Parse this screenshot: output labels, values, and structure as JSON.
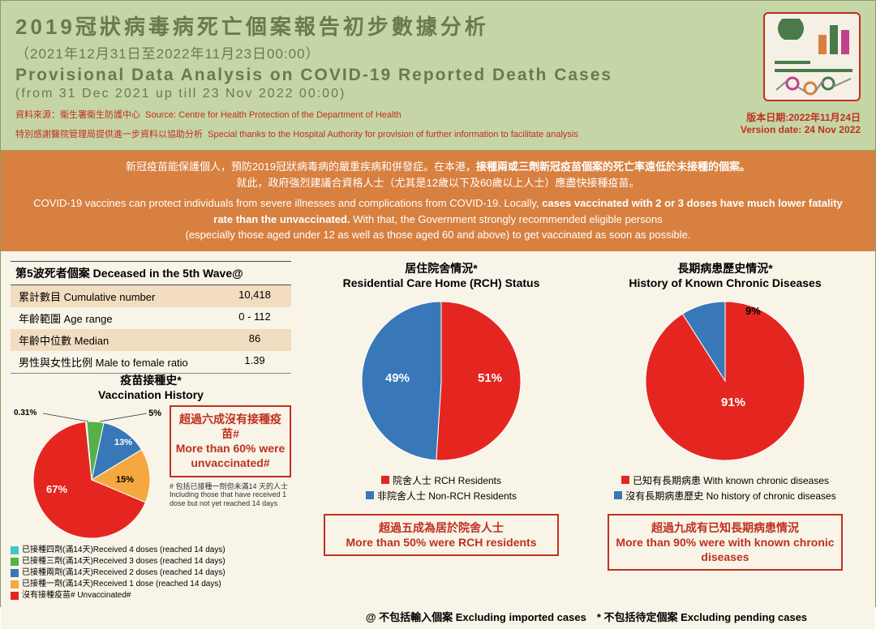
{
  "header": {
    "title_cn": "2019冠狀病毒病死亡個案報告初步數據分析",
    "subtitle_cn": "（2021年12月31日至2022年11月23日00:00）",
    "title_en": "Provisional Data Analysis on COVID-19 Reported Death Cases",
    "subtitle_en": "(from 31 Dec 2021 up till 23 Nov 2022 00:00)",
    "source_cn": "資料來源：衞生署衞生防護中心",
    "source_en": "Source: Centre for Health Protection of the Department of Health",
    "thanks_cn": "特別感謝醫院管理局提供進一步資料以協助分析",
    "thanks_en": "Special thanks to the Hospital Authority for provision of further information to facilitate analysis",
    "version_cn": "版本日期:2022年11月24日",
    "version_en": "Version date: 24 Nov 2022",
    "icon_colors": {
      "pie1": "#c04090",
      "pie2": "#4a7a4a",
      "bar1": "#d88040",
      "bar2": "#4a7a4a",
      "bar3": "#c04090",
      "lines": "#4a7a4a",
      "circle1": "#c04090",
      "circle2": "#d88040",
      "circle3": "#4a7a4a"
    }
  },
  "info_band": {
    "line1_cn": "新冠疫苗能保護個人，預防2019冠狀病毒病的嚴重疾病和併發症。在本港，",
    "line1_bold_cn": "接種兩或三劑新冠疫苗個案的死亡率遠低於未接種的個案。",
    "line2_cn": "就此，政府強烈建議合資格人士（尤其是12歲以下及60歲以上人士）應盡快接種疫苗。",
    "line1_en": "COVID-19 vaccines can protect individuals from severe illnesses and complications from COVID-19. Locally, ",
    "line1_bold_en": "cases vaccinated with 2 or 3 doses have much lower fatality rate than the unvaccinated.",
    "line2_en": " With that, the Government strongly recommended eligible persons",
    "line3_en": "(especially those aged under 12 as well as those aged 60 and above) to get vaccinated as soon as possible."
  },
  "stats": {
    "title": "第5波死者個案 Deceased in the 5th Wave@",
    "rows": [
      {
        "label": "累計數目 Cumulative number",
        "value": "10,418"
      },
      {
        "label": "年齡範圍 Age range",
        "value": "0 - 112"
      },
      {
        "label": "年齡中位數 Median",
        "value": "86"
      },
      {
        "label": "男性與女性比例 Male to female ratio",
        "value": "1.39"
      }
    ]
  },
  "vacc": {
    "title_cn": "疫苗接種史*",
    "title_en": "Vaccination History",
    "type": "pie",
    "slices": [
      {
        "label": "67%",
        "value": 67,
        "color": "#e52620",
        "name": "沒有接種疫苗# Unvaccinated#"
      },
      {
        "label": "15%",
        "value": 15,
        "color": "#f5a840",
        "name": "已接種一劑(滿14天)Received 1 dose (reached 14 days)"
      },
      {
        "label": "13%",
        "value": 13,
        "color": "#3878b8",
        "name": "已接種兩劑(滿14天)Received 2 doses (reached 14 days)"
      },
      {
        "label": "5%",
        "value": 4.69,
        "color": "#58b048",
        "name": "已接種三劑(滿14天)Received 3 doses (reached 14 days)"
      },
      {
        "label": "0.31%",
        "value": 0.31,
        "color": "#40c8c8",
        "name": "已接種四劑(滿14天)Received 4 doses (reached 14 days)"
      }
    ],
    "callout_cn": "超過六成沒有接種疫苗#",
    "callout_en": "More than 60% were unvaccinated#",
    "note": "# 包括已接種一劑但未滿14 天的人士  Including those that have received 1 dose but not yet reached 14 days"
  },
  "rch": {
    "title_cn": "居住院舍情況*",
    "title_en": "Residential Care Home (RCH) Status",
    "type": "pie",
    "slices": [
      {
        "label": "51%",
        "value": 51,
        "color": "#e52620",
        "name": "院舍人士 RCH Residents"
      },
      {
        "label": "49%",
        "value": 49,
        "color": "#3878b8",
        "name": "非院舍人士 Non-RCH Residents"
      }
    ],
    "callout_cn": "超過五成為居於院舍人士",
    "callout_en": "More than 50% were RCH residents"
  },
  "chronic": {
    "title_cn": "長期病患歷史情況*",
    "title_en": "History of Known Chronic Diseases",
    "type": "pie",
    "slices": [
      {
        "label": "91%",
        "value": 91,
        "color": "#e52620",
        "name": "已知有長期病患 With known chronic diseases"
      },
      {
        "label": "9%",
        "value": 9,
        "color": "#3878b8",
        "name": "沒有長期病患歷史 No history of chronic diseases"
      }
    ],
    "callout_cn": "超過九成有已知長期病患情況",
    "callout_en": "More than 90% were with known chronic diseases"
  },
  "footnote": "@ 不包括輸入個案 Excluding imported cases　* 不包括待定個案 Excluding pending cases",
  "colors": {
    "header_bg": "#c5d5a5",
    "band_bg": "#d88040",
    "main_bg": "#f8f4e8",
    "red": "#e52620",
    "blue": "#3878b8",
    "orange": "#f5a840",
    "green": "#58b048",
    "teal": "#40c8c8",
    "callout_border": "#c03020"
  }
}
